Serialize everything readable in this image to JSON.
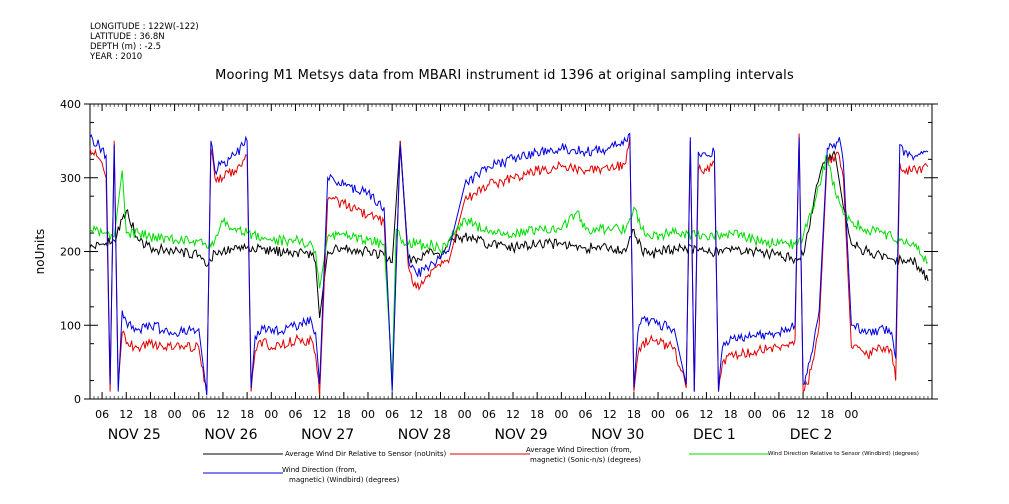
{
  "meta": {
    "longitude": "LONGITUDE : 122W(-122)",
    "latitude": "LATITUDE : 36.8N",
    "depth": "DEPTH (m) : -2.5",
    "year": "YEAR : 2010"
  },
  "chart_data": {
    "type": "line",
    "title": "Mooring M1 Metsys data from MBARI instrument id 1396 at original sampling intervals",
    "ylabel": "noUnits",
    "xlabel": "",
    "ylim": [
      0,
      400
    ],
    "yticks": [
      0,
      100,
      200,
      300,
      400
    ],
    "xlim_hours": [
      -9,
      200
    ],
    "hour_ticks": [
      "06",
      "12",
      "18",
      "00",
      "06",
      "12",
      "18",
      "00",
      "06",
      "12",
      "18",
      "00",
      "06",
      "12",
      "18",
      "00",
      "06",
      "12",
      "18",
      "00",
      "06",
      "12",
      "18",
      "00",
      "06",
      "12",
      "18",
      "00",
      "06",
      "12",
      "18",
      "00"
    ],
    "day_labels": [
      "NOV 25",
      "NOV 26",
      "NOV 27",
      "NOV 28",
      "NOV 29",
      "NOV 30",
      "DEC  1",
      "DEC  2"
    ],
    "grid": false,
    "legend_position": "bottom",
    "series": [
      {
        "name": "Average Wind Dir Relative to Sensor (noUnits)",
        "color": "#000000",
        "x": [
          -9,
          -6,
          -3,
          0,
          3,
          6,
          12,
          18,
          20,
          22,
          24,
          30,
          36,
          42,
          46,
          47,
          48,
          50,
          54,
          60,
          64,
          66,
          68,
          70,
          72,
          74,
          76,
          78,
          80,
          84,
          90,
          96,
          102,
          108,
          114,
          120,
          124,
          126,
          128,
          130,
          132,
          138,
          144,
          150,
          156,
          162,
          166,
          168,
          170,
          172,
          174,
          176,
          178,
          180,
          182,
          184,
          186,
          190,
          196,
          199
        ],
        "values": [
          205,
          210,
          215,
          255,
          215,
          205,
          200,
          195,
          180,
          200,
          200,
          205,
          200,
          200,
          195,
          185,
          110,
          200,
          205,
          200,
          195,
          185,
          350,
          190,
          185,
          195,
          200,
          190,
          215,
          220,
          210,
          205,
          210,
          210,
          205,
          205,
          200,
          230,
          200,
          195,
          200,
          205,
          200,
          200,
          200,
          195,
          190,
          195,
          250,
          300,
          330,
          330,
          260,
          210,
          205,
          200,
          195,
          190,
          185,
          160
        ]
      },
      {
        "name": "Average Wind Direction (from, magnetic) (Sonic-n/s) (degrees)",
        "color": "#e00000",
        "x": [
          -9,
          -6,
          -5,
          -4,
          -3,
          -2,
          -1,
          0,
          3,
          6,
          12,
          18,
          20,
          21,
          22,
          24,
          27,
          30,
          31,
          32,
          34,
          36,
          42,
          46,
          47,
          48,
          50,
          54,
          60,
          64,
          66,
          68,
          70,
          72,
          74,
          76,
          78,
          80,
          84,
          90,
          96,
          102,
          108,
          114,
          120,
          124,
          125,
          126,
          127,
          128,
          130,
          136,
          139,
          140,
          141,
          142,
          144,
          146,
          147,
          148,
          150,
          156,
          162,
          166,
          167,
          168,
          169,
          170,
          172,
          174,
          175,
          176,
          177,
          178,
          180,
          184,
          188,
          190,
          191,
          192,
          193,
          196,
          199
        ],
        "values": [
          340,
          320,
          300,
          10,
          350,
          20,
          90,
          75,
          70,
          75,
          70,
          70,
          10,
          340,
          300,
          300,
          310,
          330,
          10,
          65,
          80,
          70,
          80,
          80,
          60,
          5,
          270,
          265,
          250,
          240,
          15,
          350,
          180,
          150,
          160,
          175,
          180,
          185,
          270,
          290,
          300,
          310,
          315,
          310,
          310,
          320,
          355,
          10,
          60,
          75,
          80,
          70,
          15,
          350,
          10,
          310,
          310,
          320,
          10,
          50,
          60,
          65,
          70,
          80,
          360,
          10,
          20,
          40,
          100,
          330,
          320,
          330,
          330,
          300,
          70,
          60,
          70,
          65,
          25,
          320,
          310,
          310,
          315
        ]
      },
      {
        "name": "Wind Direction Relative to Sensor (Windbird) (degrees)",
        "color": "#00dd00",
        "x": [
          -9,
          -6,
          -3,
          -1,
          0,
          3,
          6,
          12,
          18,
          20,
          22,
          24,
          30,
          36,
          42,
          46,
          47,
          48,
          50,
          54,
          60,
          64,
          66,
          67,
          68,
          70,
          72,
          74,
          76,
          78,
          80,
          84,
          90,
          96,
          102,
          108,
          112,
          114,
          120,
          124,
          126,
          128,
          130,
          136,
          144,
          150,
          156,
          162,
          166,
          168,
          170,
          172,
          174,
          176,
          178,
          180,
          184,
          190,
          196,
          199
        ],
        "values": [
          230,
          225,
          220,
          310,
          225,
          225,
          220,
          215,
          215,
          205,
          215,
          240,
          225,
          215,
          215,
          210,
          200,
          150,
          220,
          225,
          215,
          210,
          30,
          230,
          220,
          210,
          215,
          205,
          210,
          200,
          215,
          245,
          225,
          225,
          230,
          230,
          255,
          230,
          230,
          230,
          260,
          230,
          220,
          225,
          220,
          225,
          215,
          210,
          210,
          220,
          250,
          290,
          330,
          280,
          250,
          240,
          230,
          220,
          210,
          185
        ]
      },
      {
        "name": "Wind Direction (from, magnetic) (Windbird) (degrees)",
        "color": "#0000e0",
        "x": [
          -9,
          -6,
          -5,
          -4,
          -3,
          -2,
          -1,
          0,
          3,
          6,
          12,
          18,
          20,
          21,
          22,
          24,
          27,
          30,
          31,
          32,
          34,
          36,
          42,
          46,
          47,
          48,
          50,
          54,
          60,
          64,
          66,
          68,
          70,
          72,
          74,
          76,
          78,
          80,
          84,
          90,
          96,
          102,
          108,
          114,
          120,
          124,
          125,
          126,
          127,
          128,
          130,
          136,
          139,
          140,
          141,
          142,
          144,
          146,
          147,
          148,
          150,
          156,
          162,
          166,
          167,
          168,
          169,
          170,
          172,
          174,
          175,
          176,
          177,
          178,
          180,
          184,
          188,
          190,
          191,
          192,
          193,
          196,
          199
        ],
        "values": [
          355,
          340,
          330,
          20,
          345,
          10,
          120,
          105,
          95,
          100,
          90,
          95,
          5,
          350,
          310,
          320,
          330,
          350,
          15,
          85,
          95,
          90,
          100,
          105,
          90,
          20,
          300,
          290,
          280,
          260,
          10,
          345,
          190,
          170,
          175,
          185,
          190,
          200,
          290,
          315,
          325,
          335,
          340,
          335,
          340,
          350,
          360,
          15,
          90,
          110,
          105,
          95,
          20,
          355,
          10,
          335,
          330,
          335,
          10,
          70,
          85,
          85,
          90,
          100,
          355,
          20,
          35,
          60,
          120,
          340,
          345,
          340,
          355,
          320,
          100,
          90,
          95,
          90,
          55,
          345,
          330,
          330,
          335
        ]
      }
    ]
  },
  "legend": {
    "items": [
      {
        "line1": "Average Wind Dir Relative to Sensor (noUnits)",
        "line2": ""
      },
      {
        "line1": "Average Wind Direction (from,",
        "line2": "magnetic) (Sonic-n/s) (degrees)"
      },
      {
        "line1": "Wind Direction Relative to Sensor (Windbird) (degrees)",
        "line2": ""
      },
      {
        "line1": "Wind Direction (from,",
        "line2": "magnetic) (Windbird) (degrees)"
      }
    ]
  }
}
